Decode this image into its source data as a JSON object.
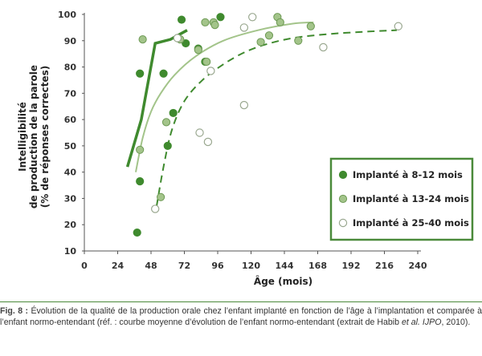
{
  "chart_data": {
    "type": "scatter",
    "title": "",
    "xlabel": "Âge (mois)",
    "ylabel_lines": [
      "Intelligibilité",
      "de production de la parole",
      "(% de réponses correctes)"
    ],
    "xlim": [
      0,
      240
    ],
    "ylim": [
      10,
      100
    ],
    "xticks": [
      "0",
      "24",
      "48",
      "72",
      "96",
      "120",
      "144",
      "168",
      "192",
      "216",
      "240"
    ],
    "yticks": [
      "10",
      "20",
      "30",
      "40",
      "50",
      "60",
      "70",
      "80",
      "90",
      "100"
    ],
    "colors": {
      "dark": "#3f8a2e",
      "medium": "#a3c48a",
      "mediumStroke": "#6e9a55",
      "open": "#ffffff",
      "openStroke": "#9aa890",
      "frame": "#4a8a3a"
    },
    "series": [
      {
        "name": "Implanté à 8-12 mois",
        "style": "dark",
        "points": [
          [
            38,
            17
          ],
          [
            40,
            77.5
          ],
          [
            40,
            36.5
          ],
          [
            57,
            77.5
          ],
          [
            60,
            50
          ],
          [
            64,
            62.5
          ],
          [
            70,
            98
          ],
          [
            73,
            89
          ],
          [
            82,
            87
          ],
          [
            87,
            82
          ],
          [
            98,
            99
          ]
        ]
      },
      {
        "name": "Implanté à 13-24 mois",
        "style": "medium",
        "points": [
          [
            40,
            48.5
          ],
          [
            42,
            90.5
          ],
          [
            55,
            30.5
          ],
          [
            59,
            59
          ],
          [
            69,
            90.5
          ],
          [
            82,
            86.5
          ],
          [
            87,
            97
          ],
          [
            88,
            82
          ],
          [
            93,
            97
          ],
          [
            94,
            96
          ],
          [
            127,
            89.5
          ],
          [
            133,
            92
          ],
          [
            139,
            99
          ],
          [
            141,
            97
          ],
          [
            154,
            90
          ],
          [
            163,
            95.5
          ]
        ]
      },
      {
        "name": "Implanté à 25-40 mois",
        "style": "open",
        "points": [
          [
            51,
            26
          ],
          [
            67,
            91
          ],
          [
            83,
            55
          ],
          [
            89,
            51.5
          ],
          [
            91,
            78.5
          ],
          [
            115,
            65.5
          ],
          [
            115,
            95
          ],
          [
            121,
            99
          ],
          [
            172,
            87.5
          ],
          [
            226,
            95.5
          ]
        ]
      }
    ],
    "curves": [
      {
        "style": "dark-thick",
        "points": [
          [
            31,
            42
          ],
          [
            41,
            60
          ],
          [
            51,
            89
          ],
          [
            62,
            90.5
          ],
          [
            74,
            94
          ]
        ]
      },
      {
        "style": "light-solid",
        "points": [
          [
            37,
            40
          ],
          [
            42,
            53
          ],
          [
            48,
            63
          ],
          [
            55,
            70
          ],
          [
            65,
            77
          ],
          [
            80,
            84
          ],
          [
            100,
            90
          ],
          [
            125,
            94
          ],
          [
            150,
            96.5
          ],
          [
            165,
            97
          ]
        ]
      },
      {
        "style": "dashed",
        "points": [
          [
            52,
            27
          ],
          [
            57,
            42
          ],
          [
            63,
            56
          ],
          [
            72,
            67
          ],
          [
            85,
            75
          ],
          [
            100,
            81
          ],
          [
            115,
            85.5
          ],
          [
            130,
            88.5
          ],
          [
            150,
            91
          ],
          [
            175,
            92.5
          ],
          [
            205,
            93.5
          ],
          [
            225,
            94
          ]
        ]
      }
    ]
  },
  "caption": {
    "label": "Fig. 8 :",
    "text_before": " Évolution de la qualité de la production orale chez l’enfant implanté en fonction de l’âge à l’implantation et comparée à l’enfant normo-entendant (réf. : courbe moyenne d’évolution de l’enfant normo-entendant (extrait de Habib ",
    "text_italic": "et al. IJPO",
    "text_after": ", 2010)."
  }
}
